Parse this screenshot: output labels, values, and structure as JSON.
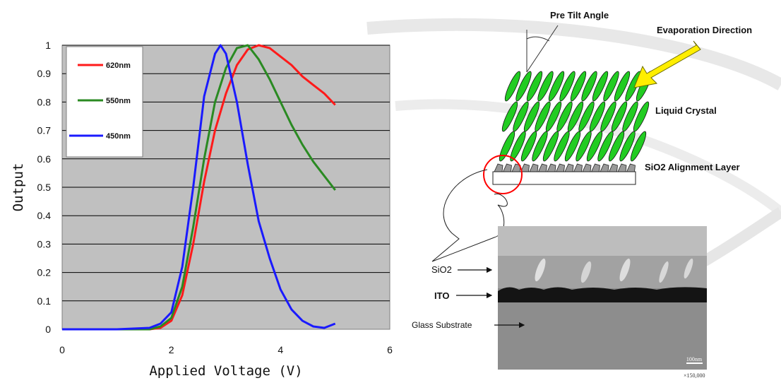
{
  "chart_data": {
    "type": "line",
    "xlabel": "Applied Voltage (V)",
    "ylabel": "Output",
    "xlim": [
      0,
      6
    ],
    "ylim": [
      0,
      1
    ],
    "xticks": [
      0,
      2,
      4,
      6
    ],
    "yticks": [
      0,
      0.1,
      0.2,
      0.3,
      0.4,
      0.5,
      0.6,
      0.7,
      0.8,
      0.9,
      1
    ],
    "grid": "horizontal",
    "legend_position": "top-left",
    "series": [
      {
        "name": "620nm",
        "color": "#ff1a1a",
        "x": [
          0,
          1.2,
          1.6,
          1.8,
          2.0,
          2.2,
          2.4,
          2.6,
          2.8,
          3.0,
          3.2,
          3.4,
          3.6,
          3.8,
          4.0,
          4.2,
          4.4,
          4.6,
          4.8,
          5.0
        ],
        "y": [
          0,
          0,
          0,
          0.005,
          0.03,
          0.12,
          0.3,
          0.52,
          0.7,
          0.83,
          0.93,
          0.985,
          1.0,
          0.99,
          0.96,
          0.93,
          0.89,
          0.86,
          0.83,
          0.79
        ]
      },
      {
        "name": "550nm",
        "color": "#2a8a22",
        "x": [
          0,
          1.2,
          1.6,
          1.8,
          2.0,
          2.2,
          2.4,
          2.6,
          2.8,
          3.0,
          3.2,
          3.4,
          3.6,
          3.8,
          4.0,
          4.2,
          4.4,
          4.6,
          4.8,
          5.0
        ],
        "y": [
          0,
          0,
          0,
          0.01,
          0.04,
          0.15,
          0.36,
          0.6,
          0.8,
          0.92,
          0.99,
          1.0,
          0.95,
          0.88,
          0.8,
          0.72,
          0.65,
          0.59,
          0.54,
          0.49
        ]
      },
      {
        "name": "450nm",
        "color": "#1a1aff",
        "x": [
          0,
          1.0,
          1.6,
          1.8,
          2.0,
          2.2,
          2.4,
          2.6,
          2.8,
          2.9,
          3.0,
          3.2,
          3.4,
          3.6,
          3.8,
          4.0,
          4.2,
          4.4,
          4.6,
          4.8,
          5.0
        ],
        "y": [
          0,
          0,
          0.005,
          0.02,
          0.06,
          0.22,
          0.5,
          0.82,
          0.97,
          1.0,
          0.97,
          0.8,
          0.58,
          0.38,
          0.25,
          0.14,
          0.07,
          0.03,
          0.01,
          0.005,
          0.02
        ]
      }
    ]
  },
  "diagram": {
    "labels": {
      "pre_tilt": "Pre Tilt Angle",
      "evaporation": "Evaporation Direction",
      "liquid_crystal": "Liquid Crystal",
      "alignment_layer": "SiO2 Alignment Layer",
      "sio2": "SiO2",
      "ito": "ITO",
      "glass": "Glass Substrate",
      "scale_bar": "100nm",
      "magnification": "×150,000"
    },
    "colors": {
      "crystal_fill": "#22cc22",
      "arrow": "#ffee00",
      "highlight_circle": "#ff0000"
    }
  }
}
